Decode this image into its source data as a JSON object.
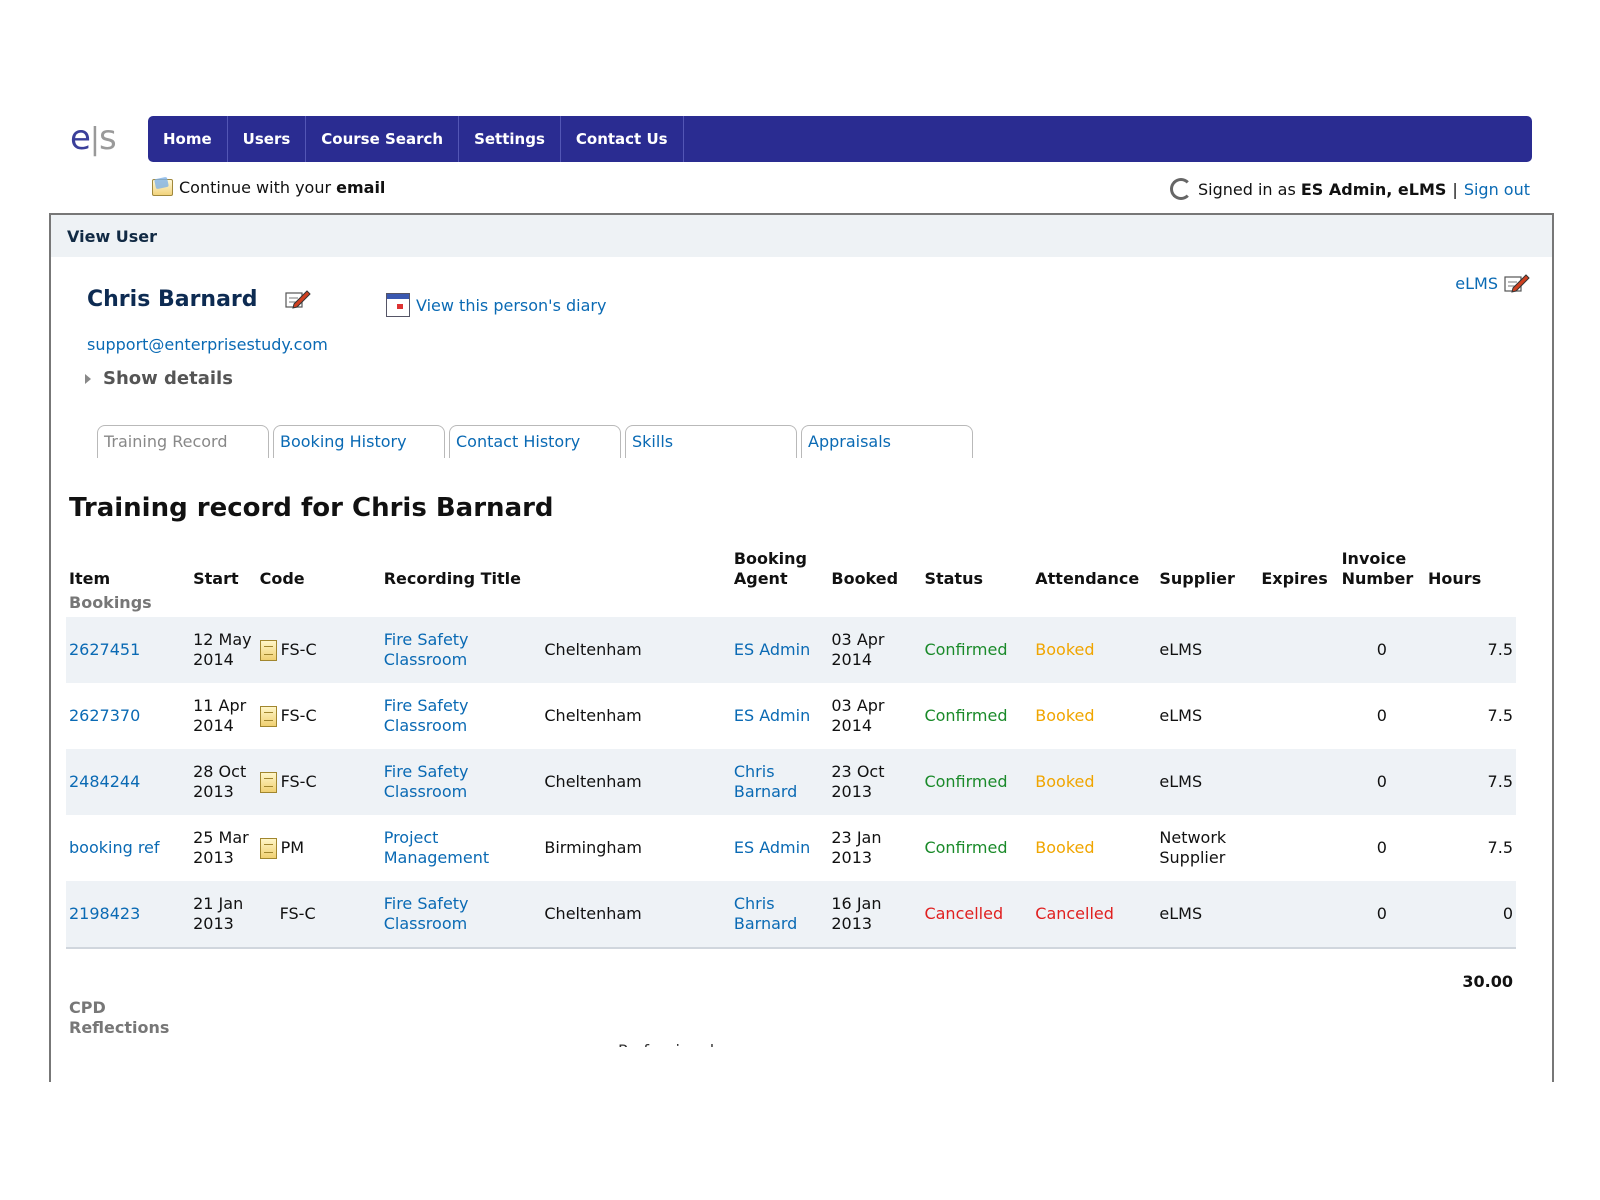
{
  "logo": {
    "e": "e",
    "s": "s"
  },
  "nav": [
    "Home",
    "Users",
    "Course Search",
    "Settings",
    "Contact Us"
  ],
  "subbar": {
    "email_prompt_prefix": "Continue with your ",
    "email_prompt_bold": "email",
    "signed_in_prefix": "Signed in as ",
    "signed_in_user": "ES Admin, eLMS",
    "separator": "|",
    "sign_out": "Sign out"
  },
  "panel": {
    "header": "View User",
    "person_name": "Chris Barnard",
    "diary_link": "View this person's diary",
    "org_link": "eLMS",
    "email": "support@enterprisestudy.com",
    "show_details": "Show details"
  },
  "tabs": [
    "Training Record",
    "Booking History",
    "Contact History",
    "Skills",
    "Appraisals"
  ],
  "record_title": "Training record for Chris Barnard",
  "table": {
    "headers": [
      "Item",
      "Start",
      "Code",
      "Recording Title",
      "",
      "Booking Agent",
      "Booked",
      "Status",
      "Attendance",
      "Supplier",
      "Expires",
      "Invoice Number",
      "Hours"
    ],
    "group_label": "Bookings",
    "rows": [
      {
        "item": "2627451",
        "start": "12 May 2014",
        "doc": true,
        "code": "FS-C",
        "title": "Fire Safety Classroom",
        "location": "Cheltenham",
        "agent": "ES Admin",
        "booked": "03 Apr 2014",
        "status": "Confirmed",
        "attendance": "Booked",
        "supplier": "eLMS",
        "expires": "",
        "invoice": "0",
        "hours": "7.5"
      },
      {
        "item": "2627370",
        "start": "11 Apr 2014",
        "doc": true,
        "code": "FS-C",
        "title": "Fire Safety Classroom",
        "location": "Cheltenham",
        "agent": "ES Admin",
        "booked": "03 Apr 2014",
        "status": "Confirmed",
        "attendance": "Booked",
        "supplier": "eLMS",
        "expires": "",
        "invoice": "0",
        "hours": "7.5"
      },
      {
        "item": "2484244",
        "start": "28 Oct 2013",
        "doc": true,
        "code": "FS-C",
        "title": "Fire Safety Classroom",
        "location": "Cheltenham",
        "agent": "Chris Barnard",
        "booked": "23 Oct 2013",
        "status": "Confirmed",
        "attendance": "Booked",
        "supplier": "eLMS",
        "expires": "",
        "invoice": "0",
        "hours": "7.5"
      },
      {
        "item": "booking ref",
        "start": "25 Mar 2013",
        "doc": true,
        "code": "PM",
        "title": "Project Management",
        "location": "Birmingham",
        "agent": "ES Admin",
        "booked": "23 Jan 2013",
        "status": "Confirmed",
        "attendance": "Booked",
        "supplier": "Network Supplier",
        "expires": "",
        "invoice": "0",
        "hours": "7.5"
      },
      {
        "item": "2198423",
        "start": "21 Jan 2013",
        "doc": false,
        "code": "FS-C",
        "title": "Fire Safety Classroom",
        "location": "Cheltenham",
        "agent": "Chris Barnard",
        "booked": "16 Jan 2013",
        "status": "Cancelled",
        "attendance": "Cancelled",
        "supplier": "eLMS",
        "expires": "",
        "invoice": "0",
        "hours": "0"
      }
    ],
    "total_hours": "30.00"
  },
  "cpd_label": "CPD Reflections",
  "cut_off_text": "Professional",
  "colors": {
    "nav_bg": "#2a2c91",
    "link": "#0a6ab4",
    "confirmed": "#1a8a2a",
    "booked": "#f0a500",
    "cancelled": "#e02020"
  }
}
